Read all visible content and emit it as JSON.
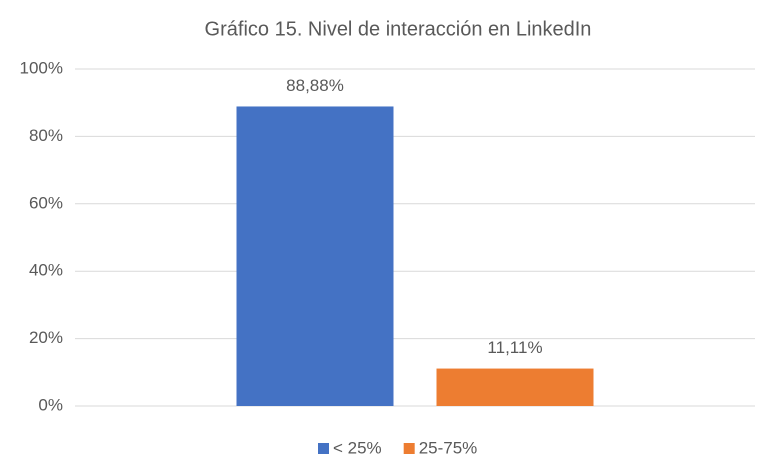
{
  "chart_data": {
    "type": "bar",
    "title": "Gráfico 15. Nivel de interacción en LinkedIn",
    "categories": [
      null
    ],
    "series": [
      {
        "name": "< 25%",
        "color": "#4472c4",
        "values": [
          88.88
        ],
        "value_labels": [
          "88,88%"
        ]
      },
      {
        "name": "25-75%",
        "color": "#ed7d31",
        "values": [
          11.11
        ],
        "value_labels": [
          "11,11%"
        ]
      }
    ],
    "ylim": [
      0,
      100
    ],
    "yticks": [
      {
        "value": 0,
        "label": "0%"
      },
      {
        "value": 20,
        "label": "20%"
      },
      {
        "value": 40,
        "label": "40%"
      },
      {
        "value": 60,
        "label": "60%"
      },
      {
        "value": 80,
        "label": "80%"
      },
      {
        "value": 100,
        "label": "100%"
      }
    ],
    "grid": true,
    "legend": "bottom"
  }
}
